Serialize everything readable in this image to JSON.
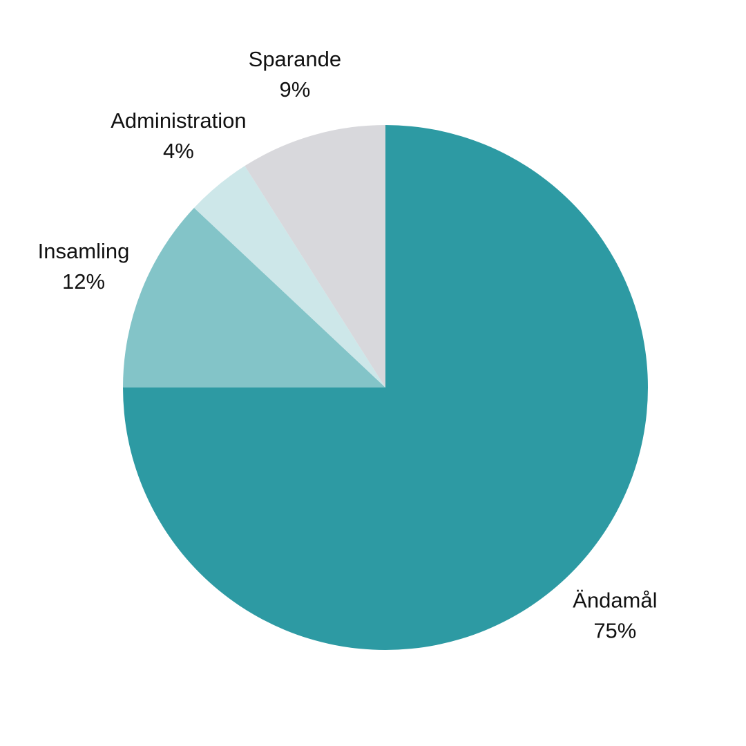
{
  "chart_data": {
    "type": "pie",
    "categories": [
      "Ändamål",
      "Insamling",
      "Administration",
      "Sparande"
    ],
    "values": [
      75,
      12,
      4,
      9
    ],
    "value_labels": [
      "75%",
      "12%",
      "4%",
      "9%"
    ],
    "colors": [
      "#2d9aa3",
      "#83c4c8",
      "#cde7e9",
      "#d8d8dc"
    ]
  }
}
